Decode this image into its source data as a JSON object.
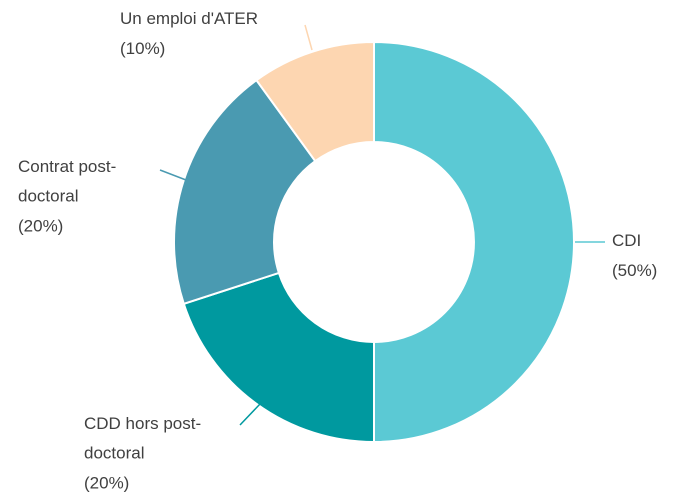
{
  "chart_data": {
    "type": "donut",
    "categories": [
      "CDI",
      "CDD hors post-doctoral",
      "Contrat post-doctoral",
      "Un emploi d'ATER"
    ],
    "values": [
      50,
      20,
      20,
      10
    ],
    "value_labels": [
      "(50%)",
      "(20%)",
      "(20%)",
      "(10%)"
    ],
    "colors": [
      "#5bc9d4",
      "#00999f",
      "#4a9ab1",
      "#fdd6b1"
    ]
  }
}
